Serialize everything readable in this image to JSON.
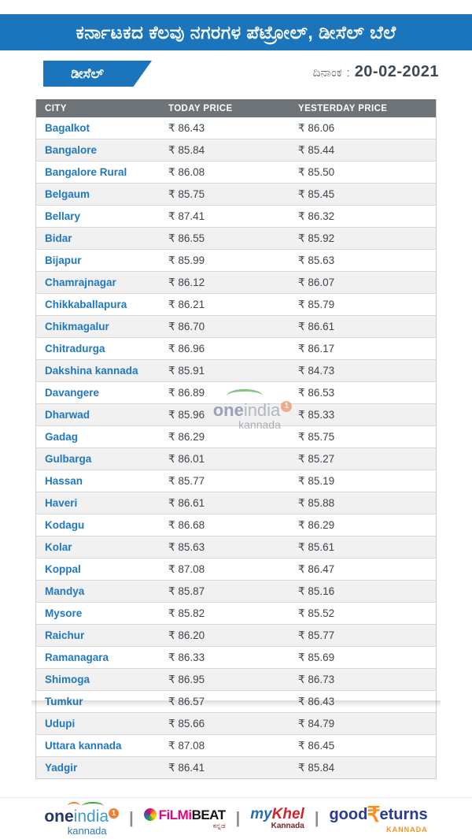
{
  "page": {
    "background": "#ffffff",
    "accent_blue": "#1a75bd",
    "table_header_gray": "#6e7378",
    "city_link_blue": "#1f78c1"
  },
  "header": {
    "title": "ಕರ್ನಾಟಕದ ಕೆಲವು ನಗರಗಳ ಪೆಟ್ರೋಲ್, ಡೀಸೆಲ್ ಬೆಲೆ",
    "fuel_tab_label": "ಡೀಸೆಲ್",
    "date_label": "ದಿನಾಂಕ",
    "date_separator": ":",
    "date_value": "20-02-2021"
  },
  "table": {
    "currency": "₹",
    "columns": [
      "CITY",
      "TODAY PRICE",
      "YESTERDAY PRICE"
    ],
    "rows": [
      {
        "city": "Bagalkot",
        "today": "86.43",
        "yesterday": "86.06"
      },
      {
        "city": "Bangalore",
        "today": "85.84",
        "yesterday": "85.44"
      },
      {
        "city": "Bangalore Rural",
        "today": "86.08",
        "yesterday": "85.50"
      },
      {
        "city": "Belgaum",
        "today": "85.75",
        "yesterday": "85.45"
      },
      {
        "city": "Bellary",
        "today": "87.41",
        "yesterday": "86.32"
      },
      {
        "city": "Bidar",
        "today": "86.55",
        "yesterday": "85.92"
      },
      {
        "city": "Bijapur",
        "today": "85.99",
        "yesterday": "85.63"
      },
      {
        "city": "Chamrajnagar",
        "today": "86.12",
        "yesterday": "86.07"
      },
      {
        "city": "Chikkaballapura",
        "today": "86.21",
        "yesterday": "85.79"
      },
      {
        "city": "Chikmagalur",
        "today": "86.70",
        "yesterday": "86.61"
      },
      {
        "city": "Chitradurga",
        "today": "86.96",
        "yesterday": "86.17"
      },
      {
        "city": "Dakshina kannada",
        "today": "85.91",
        "yesterday": "84.73"
      },
      {
        "city": "Davangere",
        "today": "86.89",
        "yesterday": "86.53"
      },
      {
        "city": "Dharwad",
        "today": "85.96",
        "yesterday": "85.33"
      },
      {
        "city": "Gadag",
        "today": "86.29",
        "yesterday": "85.75"
      },
      {
        "city": "Gulbarga",
        "today": "86.01",
        "yesterday": "85.27"
      },
      {
        "city": "Hassan",
        "today": "85.77",
        "yesterday": "85.19"
      },
      {
        "city": "Haveri",
        "today": "86.61",
        "yesterday": "85.88"
      },
      {
        "city": "Kodagu",
        "today": "86.68",
        "yesterday": "86.29"
      },
      {
        "city": "Kolar",
        "today": "85.63",
        "yesterday": "85.61"
      },
      {
        "city": "Koppal",
        "today": "87.08",
        "yesterday": "86.47"
      },
      {
        "city": "Mandya",
        "today": "85.87",
        "yesterday": "85.16"
      },
      {
        "city": "Mysore",
        "today": "85.82",
        "yesterday": "85.52"
      },
      {
        "city": "Raichur",
        "today": "86.20",
        "yesterday": "85.77"
      },
      {
        "city": "Ramanagara",
        "today": "86.33",
        "yesterday": "85.69"
      },
      {
        "city": "Shimoga",
        "today": "86.95",
        "yesterday": "86.73"
      },
      {
        "city": "Tumkur",
        "today": "86.57",
        "yesterday": "86.43"
      },
      {
        "city": "Udupi",
        "today": "85.66",
        "yesterday": "84.79"
      },
      {
        "city": "Uttara kannada",
        "today": "87.08",
        "yesterday": "86.45"
      },
      {
        "city": "Yadgir",
        "today": "86.41",
        "yesterday": "85.84"
      }
    ]
  },
  "watermark": {
    "brand_bold": "one",
    "brand_light": "india",
    "badge": "1",
    "subtitle": "kannada"
  },
  "footer": {
    "separator": "|",
    "oneindia": {
      "name_bold": "one",
      "name_light": "india",
      "badge": "1",
      "subtitle": "kannada"
    },
    "filmibeat": {
      "name_pink": "FiLMi",
      "name_black": "BEAT",
      "subtitle": "ಕನ್ನಡ"
    },
    "mykhel": {
      "name_blue": "my",
      "name_red": "Khel",
      "subtitle": "Kannada"
    },
    "goodreturns": {
      "prefix": "good",
      "rupee": "₹",
      "suffix": "eturns",
      "subtitle": "KANNADA"
    }
  },
  "chart_data": {
    "type": "table",
    "title": "ಕರ್ನಾಟಕದ ಕೆಲವು ನಗರಗಳ ಪೆಟ್ರೋಲ್, ಡೀಸೆಲ್ ಬೆಲೆ (Diesel prices, 20-02-2021, ₹/litre)",
    "categories": [
      "Bagalkot",
      "Bangalore",
      "Bangalore Rural",
      "Belgaum",
      "Bellary",
      "Bidar",
      "Bijapur",
      "Chamrajnagar",
      "Chikkaballapura",
      "Chikmagalur",
      "Chitradurga",
      "Dakshina kannada",
      "Davangere",
      "Dharwad",
      "Gadag",
      "Gulbarga",
      "Hassan",
      "Haveri",
      "Kodagu",
      "Kolar",
      "Koppal",
      "Mandya",
      "Mysore",
      "Raichur",
      "Ramanagara",
      "Shimoga",
      "Tumkur",
      "Udupi",
      "Uttara kannada",
      "Yadgir"
    ],
    "series": [
      {
        "name": "TODAY PRICE",
        "values": [
          86.43,
          85.84,
          86.08,
          85.75,
          87.41,
          86.55,
          85.99,
          86.12,
          86.21,
          86.7,
          86.96,
          85.91,
          86.89,
          85.96,
          86.29,
          86.01,
          85.77,
          86.61,
          86.68,
          85.63,
          87.08,
          85.87,
          85.82,
          86.2,
          86.33,
          86.95,
          86.57,
          85.66,
          87.08,
          86.41
        ]
      },
      {
        "name": "YESTERDAY PRICE",
        "values": [
          86.06,
          85.44,
          85.5,
          85.45,
          86.32,
          85.92,
          85.63,
          86.07,
          85.79,
          86.61,
          86.17,
          84.73,
          86.53,
          85.33,
          85.75,
          85.27,
          85.19,
          85.88,
          86.29,
          85.61,
          86.47,
          85.16,
          85.52,
          85.77,
          85.69,
          86.73,
          86.43,
          84.79,
          86.45,
          85.84
        ]
      }
    ]
  }
}
